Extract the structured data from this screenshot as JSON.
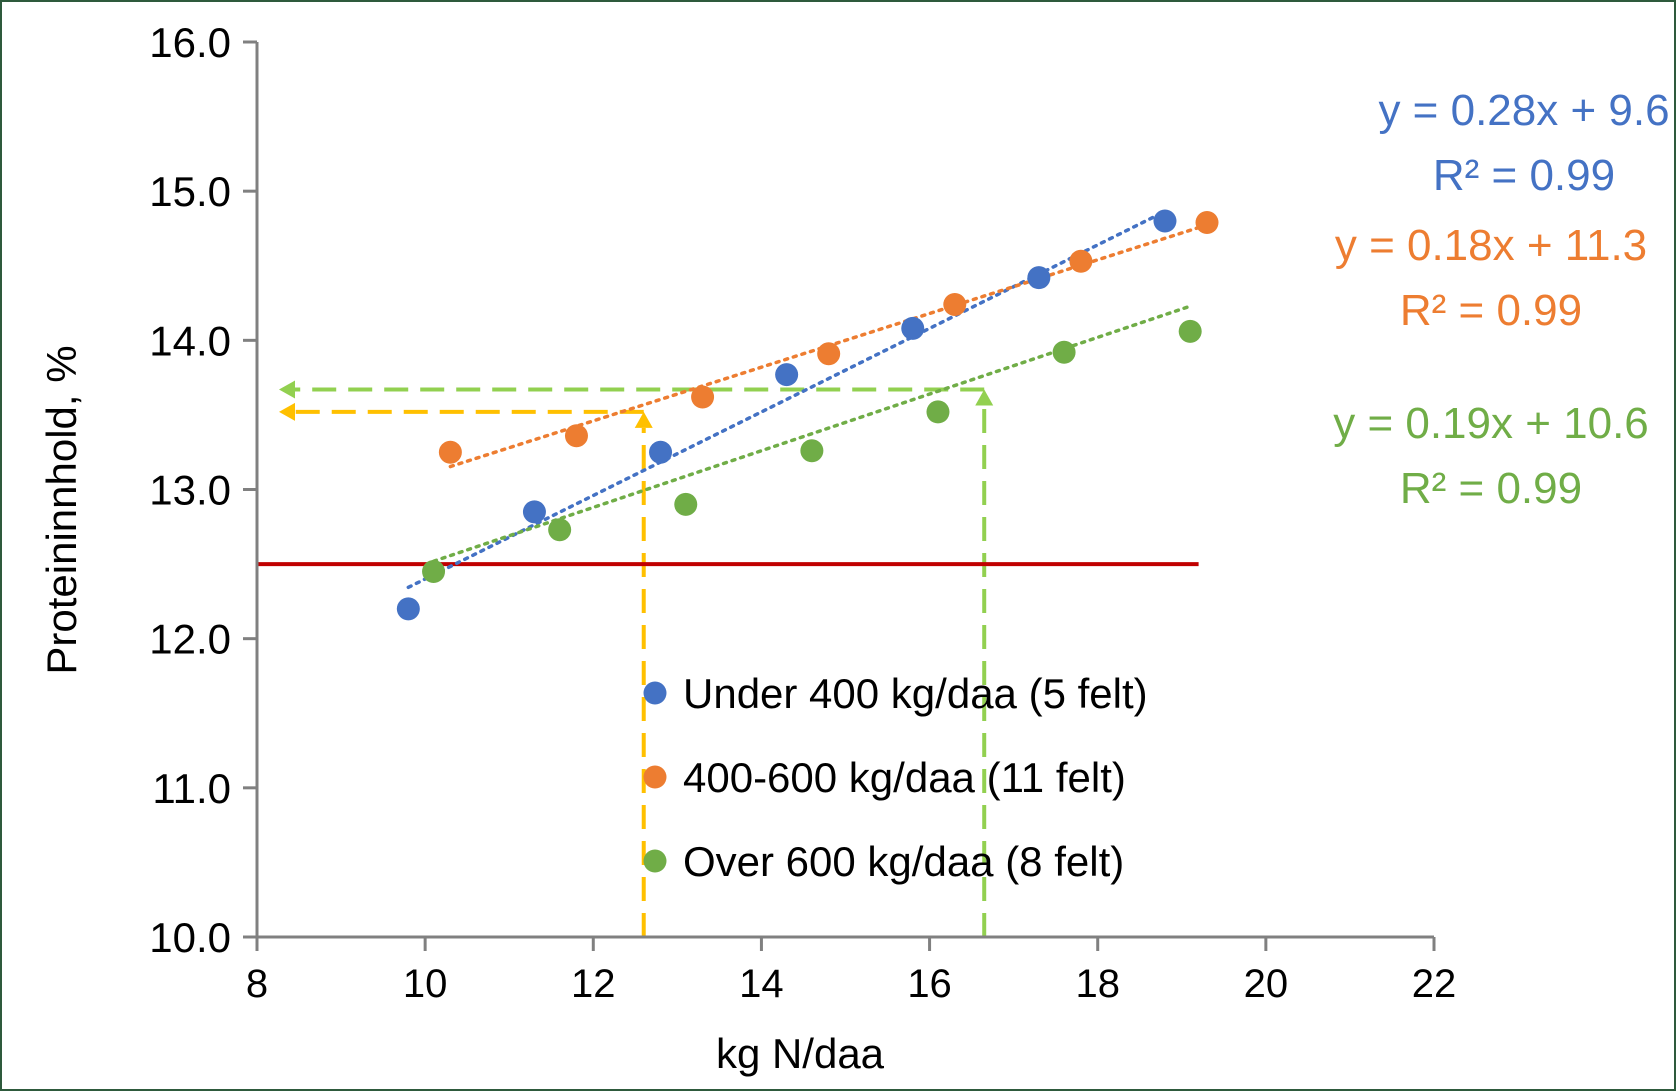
{
  "chart_data": {
    "type": "scatter",
    "xlabel": "kg N/daa",
    "ylabel": "Proteininnhold, %",
    "xlim": [
      8,
      22
    ],
    "ylim": [
      10,
      16
    ],
    "x_ticks": [
      8,
      10,
      12,
      14,
      16,
      18,
      20,
      22
    ],
    "y_ticks": [
      10,
      11,
      12,
      13,
      14,
      15,
      16
    ],
    "x_tick_labels": [
      "8",
      "10",
      "12",
      "14",
      "16",
      "18",
      "20",
      "22"
    ],
    "y_tick_labels": [
      "10.0",
      "11.0",
      "12.0",
      "13.0",
      "14.0",
      "15.0",
      "16.0"
    ],
    "grid": false,
    "legend_position": "bottom-center",
    "series": [
      {
        "name": "Under 400 kg/daa (5 felt)",
        "color": "#4472C4",
        "x": [
          9.8,
          11.3,
          12.8,
          14.3,
          15.8,
          17.3,
          18.8
        ],
        "y": [
          12.2,
          12.85,
          13.25,
          13.77,
          14.08,
          14.42,
          14.8
        ],
        "trendline": {
          "equation": "y = 0.28x + 9.6",
          "r2": "R² = 0.99",
          "x_range": [
            9.8,
            18.8
          ],
          "slope": 0.28,
          "intercept": 9.6
        }
      },
      {
        "name": "400-600 kg/daa (11 felt)",
        "color": "#ED7D31",
        "x": [
          10.3,
          11.8,
          13.3,
          14.8,
          16.3,
          17.8,
          19.3
        ],
        "y": [
          13.25,
          13.36,
          13.62,
          13.91,
          14.24,
          14.53,
          14.79
        ],
        "trendline": {
          "equation": "y = 0.18x + 11.3",
          "r2": "R² = 0.99",
          "x_range": [
            10.3,
            19.3
          ],
          "slope": 0.18,
          "intercept": 11.3
        }
      },
      {
        "name": "Over 600 kg/daa (8 felt)",
        "color": "#70AD47",
        "x": [
          10.1,
          11.6,
          13.1,
          14.6,
          16.1,
          17.6,
          19.1
        ],
        "y": [
          12.45,
          12.73,
          12.9,
          13.26,
          13.52,
          13.92,
          14.06
        ],
        "trendline": {
          "equation": "y = 0.19x + 10.6",
          "r2": "R² = 0.99",
          "x_range": [
            10.1,
            19.1
          ],
          "slope": 0.19,
          "intercept": 10.6
        }
      }
    ],
    "reference_line": {
      "y": 12.5,
      "x_range": [
        8,
        19.2
      ],
      "color": "#C00000"
    },
    "guide_lines": [
      {
        "x": 12.6,
        "y": 13.52,
        "color": "#FFC000"
      },
      {
        "x": 16.65,
        "y": 13.67,
        "color": "#92D050"
      }
    ]
  }
}
